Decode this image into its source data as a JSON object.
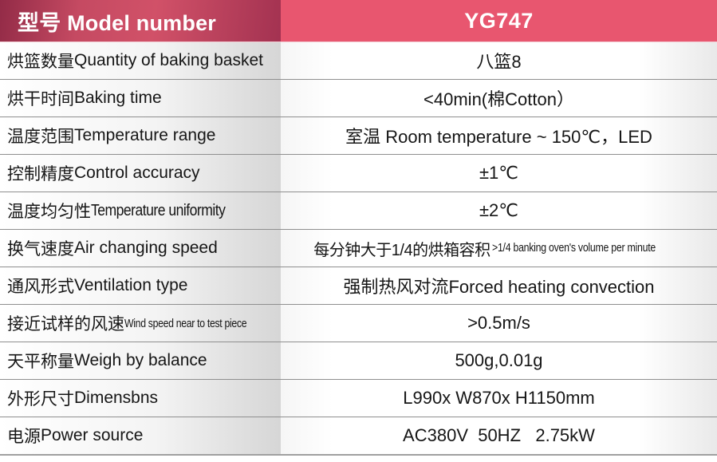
{
  "header": {
    "model_label": "型号 Model number",
    "model_value": "YG747"
  },
  "colors": {
    "header_left_gradient_dark": "#932b47",
    "header_left_gradient_light": "#d15168",
    "header_right_bg": "#e8566f",
    "header_text": "#ffffff",
    "row_divider": "#8f8f8f",
    "label_cell_gradient_end": "#d6d6d6",
    "body_text": "#161616"
  },
  "table": {
    "rows": [
      {
        "label_cn": "烘篮数量",
        "label_en": "Quantity of baking basket",
        "value": "八篮8"
      },
      {
        "label_cn": "烘干时间",
        "label_en": "Baking time",
        "value": "<40min(棉Cotton）"
      },
      {
        "label_cn": "温度范围",
        "label_en": "Temperature range",
        "value": "室温 Room temperature ~ 150℃，LED"
      },
      {
        "label_cn": "控制精度",
        "label_en": "Control accuracy",
        "value": "±1℃"
      },
      {
        "label_cn": "温度均匀性",
        "label_en": "Temperature uniformity",
        "value": "±2℃"
      },
      {
        "label_cn": "换气速度",
        "label_en": "Air changing speed",
        "value_cn": "每分钟大于1/4的烘箱容积",
        "value_en": ">1/4 banking oven's volume per minute"
      },
      {
        "label_cn": "通风形式",
        "label_en": "Ventilation type",
        "value": "强制热风对流Forced heating convection"
      },
      {
        "label_cn": "接近试样的风速",
        "label_en": "Wind speed near to test piece",
        "value": ">0.5m/s"
      },
      {
        "label_cn": "天平称量",
        "label_en": "Weigh by balance",
        "value": "500g,0.01g"
      },
      {
        "label_cn": "外形尺寸",
        "label_en": "Dimensbns",
        "value": "L990x W870x H1150mm"
      },
      {
        "label_cn": "电源",
        "label_en": "Power source",
        "value": "AC380V  50HZ   2.75kW"
      }
    ]
  }
}
